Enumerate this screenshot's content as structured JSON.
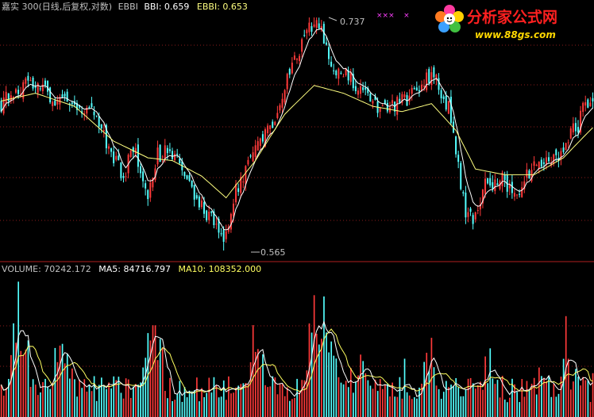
{
  "price_panel": {
    "title": "嘉实 300(日线,后复权,对数)",
    "indicator_name": "EBBI",
    "bbi_label": "BBI: 0.659",
    "ebbi_label": "EBBI: 0.653",
    "high_label": "0.737",
    "low_label": "0.565",
    "markers": "×××    ×"
  },
  "volume_panel": {
    "volume_label": "VOLUME: 70242.172",
    "ma5_label": "MA5: 84716.797",
    "ma10_label": "MA10: 108352.000"
  },
  "watermark": {
    "title": "分析家公式网",
    "url": "www.88gs.com"
  },
  "colors": {
    "up": "#ff3a3a",
    "down": "#54ffff",
    "bbi": "#ffffff",
    "ebbi": "#ffff80",
    "grid": "#8b1c1c",
    "ma5": "#ffffff",
    "ma10": "#ffff60",
    "header_text": "#c0c0c0",
    "watermark_red": "#ff2020",
    "watermark_yellow": "#ffd800"
  },
  "chart_data": [
    {
      "type": "candlestick",
      "scale": "log",
      "ylim": [
        0.565,
        0.737
      ],
      "anchors": [
        [
          0,
          0.668
        ],
        [
          10,
          0.685
        ],
        [
          15,
          0.682
        ],
        [
          22,
          0.672
        ],
        [
          28,
          0.67
        ],
        [
          38,
          0.66
        ],
        [
          45,
          0.63
        ],
        [
          50,
          0.615
        ],
        [
          54,
          0.636
        ],
        [
          60,
          0.602
        ],
        [
          64,
          0.63
        ],
        [
          68,
          0.632
        ],
        [
          72,
          0.625
        ],
        [
          76,
          0.61
        ],
        [
          84,
          0.59
        ],
        [
          88,
          0.58
        ],
        [
          91,
          0.573
        ],
        [
          96,
          0.605
        ],
        [
          102,
          0.626
        ],
        [
          110,
          0.65
        ],
        [
          118,
          0.69
        ],
        [
          124,
          0.72
        ],
        [
          128,
          0.735
        ],
        [
          132,
          0.72
        ],
        [
          136,
          0.692
        ],
        [
          142,
          0.69
        ],
        [
          150,
          0.672
        ],
        [
          156,
          0.662
        ],
        [
          162,
          0.668
        ],
        [
          170,
          0.676
        ],
        [
          174,
          0.69
        ],
        [
          178,
          0.686
        ],
        [
          183,
          0.665
        ],
        [
          187,
          0.62
        ],
        [
          190,
          0.59
        ],
        [
          193,
          0.586
        ],
        [
          198,
          0.608
        ],
        [
          205,
          0.615
        ],
        [
          210,
          0.6
        ],
        [
          216,
          0.617
        ],
        [
          222,
          0.626
        ],
        [
          228,
          0.63
        ],
        [
          233,
          0.648
        ],
        [
          236,
          0.652
        ],
        [
          238,
          0.668
        ],
        [
          242,
          0.672
        ]
      ],
      "bbi_anchors": [
        [
          0,
          0.67
        ],
        [
          14,
          0.676
        ],
        [
          30,
          0.666
        ],
        [
          46,
          0.64
        ],
        [
          60,
          0.628
        ],
        [
          70,
          0.626
        ],
        [
          82,
          0.615
        ],
        [
          92,
          0.6
        ],
        [
          104,
          0.626
        ],
        [
          116,
          0.66
        ],
        [
          128,
          0.682
        ],
        [
          140,
          0.676
        ],
        [
          152,
          0.666
        ],
        [
          164,
          0.662
        ],
        [
          176,
          0.668
        ],
        [
          186,
          0.648
        ],
        [
          194,
          0.62
        ],
        [
          206,
          0.616
        ],
        [
          218,
          0.616
        ],
        [
          230,
          0.628
        ],
        [
          242,
          0.65
        ]
      ]
    },
    {
      "type": "bar",
      "series": [
        "VOLUME",
        "MA5",
        "MA10"
      ],
      "ylim": [
        0,
        260000
      ],
      "surges": [
        [
          7,
          200000
        ],
        [
          26,
          110000
        ],
        [
          62,
          190000
        ],
        [
          104,
          110000
        ],
        [
          128,
          170000
        ],
        [
          134,
          130000
        ],
        [
          148,
          60000
        ],
        [
          175,
          80000
        ],
        [
          200,
          70000
        ],
        [
          232,
          65000
        ]
      ],
      "base_volume": 55000
    }
  ]
}
